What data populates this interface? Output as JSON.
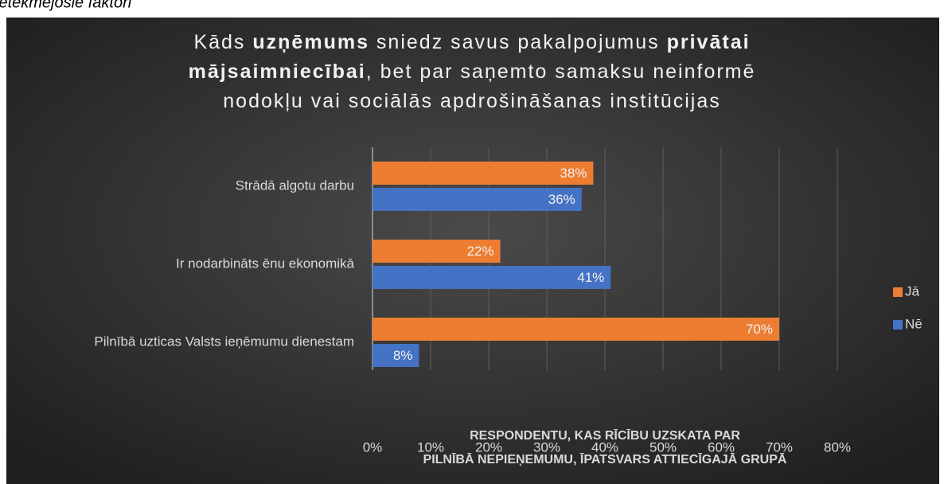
{
  "page_caption": "ietekmējošie faktori",
  "chart_data": {
    "type": "hbar",
    "title_lines": [
      [
        {
          "text": "Kāds ",
          "bold": false
        },
        {
          "text": "uzņēmums",
          "bold": true
        },
        {
          "text": " sniedz savus pakalpojumus ",
          "bold": false
        },
        {
          "text": "privātai",
          "bold": true
        }
      ],
      [
        {
          "text": "mājsaimniecībai",
          "bold": true
        },
        {
          "text": ", bet par saņemto samaksu neinformē",
          "bold": false
        }
      ],
      [
        {
          "text": "nodokļu vai sociālās apdrošināšanas institūcijas",
          "bold": false
        }
      ]
    ],
    "categories": [
      "Strādā algotu darbu",
      "Ir nodarbināts ēnu ekonomikā",
      "Pilnībā uzticas Valsts ieņēmumu dienestam"
    ],
    "series": [
      {
        "name": "Jā",
        "color": "#ed7d31",
        "values": [
          38,
          22,
          70
        ],
        "value_labels": [
          "38%",
          "22%",
          "70%"
        ]
      },
      {
        "name": "Nē",
        "color": "#4472c4",
        "values": [
          36,
          41,
          8
        ],
        "value_labels": [
          "36%",
          "41%",
          "8%"
        ]
      }
    ],
    "xlim": [
      0,
      80
    ],
    "xticks": [
      {
        "value": 0,
        "label": "0%"
      },
      {
        "value": 10,
        "label": "10%"
      },
      {
        "value": 20,
        "label": "20%"
      },
      {
        "value": 30,
        "label": "30%"
      },
      {
        "value": 40,
        "label": "40%"
      },
      {
        "value": 50,
        "label": "50%"
      },
      {
        "value": 60,
        "label": "60%"
      },
      {
        "value": 70,
        "label": "70%"
      },
      {
        "value": 80,
        "label": "80%"
      }
    ],
    "x_label_lines": [
      "RESPONDENTU, KAS RĪCĪBU UZSKATA PAR",
      "PILNĪBĀ NEPIEŅEMUMU, ĪPATSVARS ATTIECĪGAJĀ GRUPĀ"
    ],
    "grid": true,
    "legend": "right"
  }
}
